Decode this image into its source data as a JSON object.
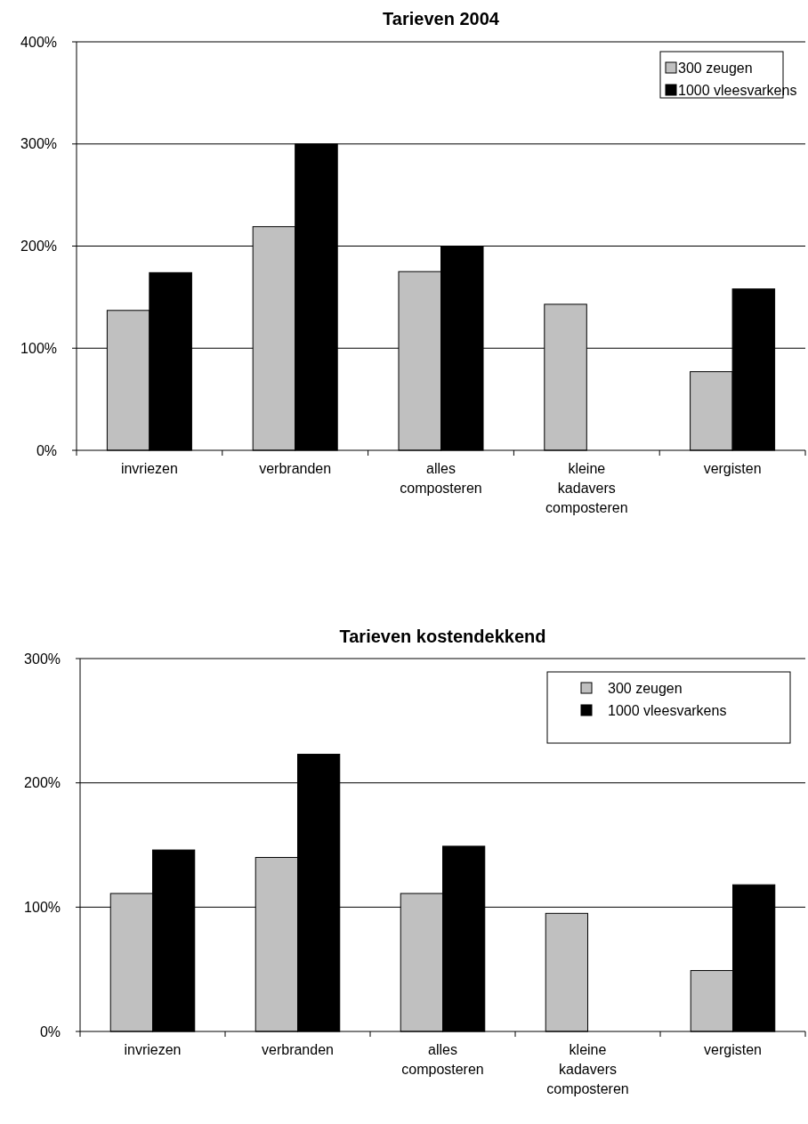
{
  "chart_data": [
    {
      "type": "bar",
      "title": "Tarieven 2004",
      "categories": [
        "invriezen",
        "verbranden",
        "alles composteren",
        "kleine kadavers composteren",
        "vergisten"
      ],
      "series": [
        {
          "name": "300 zeugen",
          "color": "#c0c0c0",
          "values": [
            137,
            219,
            175,
            143,
            77
          ]
        },
        {
          "name": "1000 vleesvarkens",
          "color": "#000000",
          "values": [
            174,
            300,
            200,
            null,
            158
          ]
        }
      ],
      "ylim": [
        0,
        400
      ],
      "yticks": [
        {
          "value": 0,
          "label": "0%"
        },
        {
          "value": 100,
          "label": "100%"
        },
        {
          "value": 200,
          "label": "200%"
        },
        {
          "value": 300,
          "label": "300%"
        },
        {
          "value": 400,
          "label": "400%"
        }
      ],
      "grid": "y",
      "legend": "top right"
    },
    {
      "type": "bar",
      "title": "Tarieven kostendekkend",
      "categories": [
        "invriezen",
        "verbranden",
        "alles composteren",
        "kleine kadavers composteren",
        "vergisten"
      ],
      "series": [
        {
          "name": "300 zeugen",
          "color": "#c0c0c0",
          "values": [
            111,
            140,
            111,
            95,
            49
          ]
        },
        {
          "name": "1000 vleesvarkens",
          "color": "#000000",
          "values": [
            146,
            223,
            149,
            null,
            118
          ]
        }
      ],
      "ylim": [
        0,
        300
      ],
      "yticks": [
        {
          "value": 0,
          "label": "0%"
        },
        {
          "value": 100,
          "label": "100%"
        },
        {
          "value": 200,
          "label": "200%"
        },
        {
          "value": 300,
          "label": "300%"
        }
      ],
      "grid": "y",
      "legend": "top right"
    }
  ]
}
